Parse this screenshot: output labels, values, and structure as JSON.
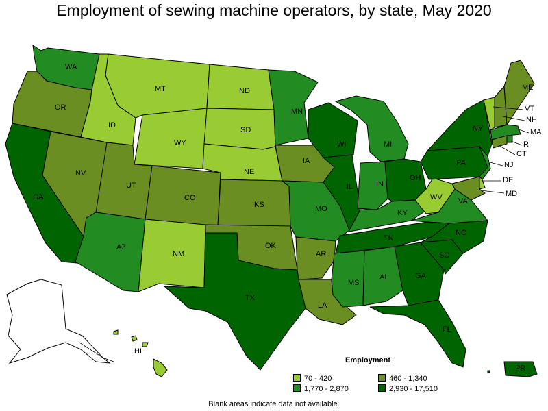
{
  "title": "Employment of sewing machine operators, by state, May 2020",
  "footnote": "Blank areas indicate data not available.",
  "colors": {
    "tier1": "#99cc33",
    "tier2": "#6b8e23",
    "tier3": "#228b22",
    "tier4": "#006400",
    "no_data": "#ffffff",
    "border": "#000000"
  },
  "legend": {
    "title": "Employment",
    "items": [
      {
        "label": "70 - 420",
        "tier": "tier1"
      },
      {
        "label": "460 - 1,340",
        "tier": "tier2"
      },
      {
        "label": "1,770 - 2,870",
        "tier": "tier3"
      },
      {
        "label": "2,930 - 17,510",
        "tier": "tier4"
      }
    ]
  },
  "states": [
    {
      "abbr": "WA",
      "tier": "tier3"
    },
    {
      "abbr": "OR",
      "tier": "tier2"
    },
    {
      "abbr": "CA",
      "tier": "tier4"
    },
    {
      "abbr": "NV",
      "tier": "tier2"
    },
    {
      "abbr": "ID",
      "tier": "tier1"
    },
    {
      "abbr": "MT",
      "tier": "tier1"
    },
    {
      "abbr": "WY",
      "tier": "tier1"
    },
    {
      "abbr": "UT",
      "tier": "tier2"
    },
    {
      "abbr": "AZ",
      "tier": "tier3"
    },
    {
      "abbr": "CO",
      "tier": "tier2"
    },
    {
      "abbr": "NM",
      "tier": "tier1"
    },
    {
      "abbr": "ND",
      "tier": "tier1"
    },
    {
      "abbr": "SD",
      "tier": "tier1"
    },
    {
      "abbr": "NE",
      "tier": "tier1"
    },
    {
      "abbr": "KS",
      "tier": "tier2"
    },
    {
      "abbr": "OK",
      "tier": "tier2"
    },
    {
      "abbr": "TX",
      "tier": "tier4"
    },
    {
      "abbr": "MN",
      "tier": "tier3"
    },
    {
      "abbr": "IA",
      "tier": "tier2"
    },
    {
      "abbr": "MO",
      "tier": "tier3"
    },
    {
      "abbr": "AR",
      "tier": "tier2"
    },
    {
      "abbr": "LA",
      "tier": "tier2"
    },
    {
      "abbr": "WI",
      "tier": "tier4"
    },
    {
      "abbr": "IL",
      "tier": "tier4"
    },
    {
      "abbr": "MI",
      "tier": "tier3"
    },
    {
      "abbr": "IN",
      "tier": "tier3"
    },
    {
      "abbr": "OH",
      "tier": "tier4"
    },
    {
      "abbr": "KY",
      "tier": "tier3"
    },
    {
      "abbr": "TN",
      "tier": "tier4"
    },
    {
      "abbr": "MS",
      "tier": "tier3"
    },
    {
      "abbr": "AL",
      "tier": "tier3"
    },
    {
      "abbr": "GA",
      "tier": "tier4"
    },
    {
      "abbr": "FL",
      "tier": "tier4"
    },
    {
      "abbr": "SC",
      "tier": "tier4"
    },
    {
      "abbr": "NC",
      "tier": "tier4"
    },
    {
      "abbr": "VA",
      "tier": "tier3"
    },
    {
      "abbr": "WV",
      "tier": "tier1"
    },
    {
      "abbr": "PA",
      "tier": "tier4"
    },
    {
      "abbr": "NY",
      "tier": "tier4"
    },
    {
      "abbr": "VT",
      "tier": "tier1"
    },
    {
      "abbr": "NH",
      "tier": "tier2"
    },
    {
      "abbr": "ME",
      "tier": "tier2"
    },
    {
      "abbr": "MA",
      "tier": "tier3"
    },
    {
      "abbr": "RI",
      "tier": "tier3"
    },
    {
      "abbr": "CT",
      "tier": "tier2"
    },
    {
      "abbr": "NJ",
      "tier": "tier3"
    },
    {
      "abbr": "DE",
      "tier": "tier1"
    },
    {
      "abbr": "MD",
      "tier": "tier2"
    },
    {
      "abbr": "AK",
      "tier": "no_data"
    },
    {
      "abbr": "HI",
      "tier": "tier1"
    },
    {
      "abbr": "PR",
      "tier": "tier4"
    }
  ]
}
